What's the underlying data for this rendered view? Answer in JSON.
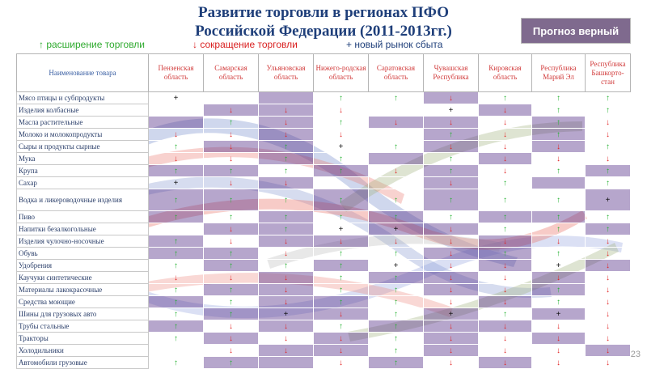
{
  "title_line1": "Развитие торговли в регионах ПФО",
  "title_line2": "Российской Федерации (2011-2013гг.)",
  "badge": "Прогноз верный",
  "legend": {
    "up": "↑ расширение торговли",
    "down": "↓ сокращение торговли",
    "plus": "+ новый рынок сбыта"
  },
  "headers": [
    "Наименование товара",
    "Пензенская область",
    "Самарская область",
    "Ульяновская область",
    "Нижего-родская область",
    "Саратовская область",
    "Чувашская Республика",
    "Кировская область",
    "Республика Марий Эл",
    "Республика Башкорто-стан"
  ],
  "rows": [
    {
      "name": "Мясо птицы и субпродукты",
      "cells": [
        "+",
        "",
        "",
        "↑",
        "↑",
        "↓",
        "↑",
        "↑",
        "↑"
      ]
    },
    {
      "name": "Изделия колбасные",
      "cells": [
        "",
        "↓",
        "↓",
        "↓",
        "",
        "+",
        "↓",
        "↑",
        "↑"
      ]
    },
    {
      "name": "Масла растительные",
      "cells": [
        "",
        "↑",
        "↓",
        "↑",
        "↓",
        "↓",
        "↓",
        "↑",
        "↓"
      ]
    },
    {
      "name": "Молоко и молокопродукты",
      "cells": [
        "↓",
        "↓",
        "↓",
        "↓",
        "",
        "↑",
        "↓",
        "↑",
        "↓"
      ]
    },
    {
      "name": "Сыры и продукты сырные",
      "cells": [
        "↑",
        "↓",
        "↑",
        "+",
        "↑",
        "↓",
        "↓",
        "↓",
        "↑"
      ]
    },
    {
      "name": "Мука",
      "cells": [
        "↓",
        "↓",
        "↑",
        "↑",
        "",
        "↑",
        "↓",
        "↓",
        "↓"
      ]
    },
    {
      "name": "Крупа",
      "cells": [
        "↑",
        "↑",
        "↑",
        "↑",
        "↓",
        "↑",
        "↓",
        "↑",
        "↑"
      ]
    },
    {
      "name": "Сахар",
      "cells": [
        "+",
        "↓",
        "↓",
        "",
        "",
        "↓",
        "↑",
        "",
        "↑"
      ]
    },
    {
      "name": "Водка и ликероводочные изделия",
      "tall": true,
      "cells": [
        "↑",
        "↑",
        "↑",
        "↑",
        "↑",
        "↑",
        "↑",
        "↑",
        "+"
      ]
    },
    {
      "name": "Пиво",
      "cells": [
        "↑",
        "↑",
        "↑",
        "↑",
        "↑",
        "↑",
        "↑",
        "↑",
        "↑"
      ]
    },
    {
      "name": "Напитки безалкогольные",
      "cells": [
        "",
        "↓",
        "↑",
        "+",
        "+",
        "↓",
        "↑",
        "↑",
        "↑"
      ]
    },
    {
      "name": "Изделия чулочно-носочные",
      "cells": [
        "↑",
        "↓",
        "↓",
        "↓",
        "↓",
        "↓",
        "↓",
        "↓",
        "↓"
      ]
    },
    {
      "name": "Обувь",
      "cells": [
        "↑",
        "↑",
        "↓",
        "↑",
        "↑",
        "↓",
        "↑",
        "↑",
        "↓"
      ]
    },
    {
      "name": "Удобрения",
      "cells": [
        "↑",
        "↑",
        "↑",
        "↑",
        "+",
        "↓",
        "↓",
        "+",
        "↓"
      ]
    },
    {
      "name": "Каучуки синтетические",
      "cells": [
        "↓",
        "↓",
        "↓",
        "↑",
        "↑",
        "↓",
        "↓",
        "↓",
        "↓"
      ]
    },
    {
      "name": "Материалы лакокрасочные",
      "cells": [
        "↑",
        "↑",
        "↓",
        "↑",
        "↑",
        "↓",
        "↓",
        "↑",
        "↓"
      ]
    },
    {
      "name": "Средства моющие",
      "cells": [
        "↑",
        "↑",
        "↓",
        "↑",
        "↑",
        "↓",
        "↓",
        "↑",
        "↓"
      ]
    },
    {
      "name": "Шины для грузовых авто",
      "cells": [
        "↑",
        "↑",
        "+",
        "↓",
        "↑",
        "+",
        "↑",
        "+",
        "↓"
      ]
    },
    {
      "name": "Трубы стальные",
      "cells": [
        "↑",
        "↓",
        "↓",
        "↑",
        "↑",
        "↓",
        "↓",
        "↓",
        "↓"
      ]
    },
    {
      "name": "Тракторы",
      "cells": [
        "↑",
        "↓",
        "↓",
        "↓",
        "↑",
        "↓",
        "↓",
        "↓",
        "↓"
      ]
    },
    {
      "name": "Холодильники",
      "cells": [
        "",
        "↓",
        "↓",
        "↓",
        "↑",
        "↓",
        "↓",
        "↓",
        "↓"
      ]
    },
    {
      "name": "Автомобили грузовые",
      "cells": [
        "↑",
        "↑",
        "",
        "↓",
        "↑",
        "↓",
        "↓",
        "↓",
        "↓"
      ]
    }
  ],
  "page_number": "23",
  "colors": {
    "title": "#1f3f7a",
    "badge": "#7f6a8e",
    "up": "#22b02e",
    "down": "#e02222",
    "shaded": "#8970ac"
  }
}
